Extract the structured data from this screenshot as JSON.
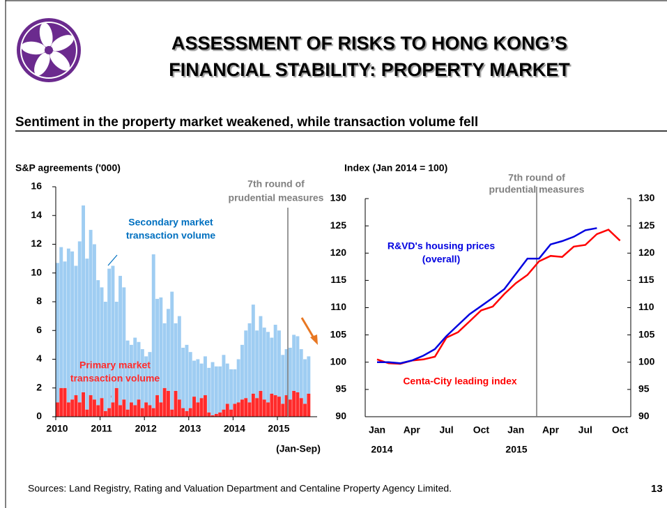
{
  "header": {
    "title": [
      "ASSESSMENT OF RISKS TO HONG KONG’S",
      "FINANCIAL  STABILITY: PROPERTY MARKET"
    ]
  },
  "subtitle": "Sentiment in the property market weakened, while transaction volume fell",
  "sources": "Sources: Land Registry, Rating and Valuation Department and Centaline Property Agency Limited.",
  "page_number": "13",
  "chart_data": [
    {
      "type": "bar",
      "stacked": true,
      "y_label": "S&P agreements ('000)",
      "categories": [
        "2010",
        null,
        null,
        null,
        null,
        null,
        null,
        null,
        null,
        null,
        null,
        null,
        "2011",
        null,
        null,
        null,
        null,
        null,
        null,
        null,
        null,
        null,
        null,
        null,
        "2012",
        null,
        null,
        null,
        null,
        null,
        null,
        null,
        null,
        null,
        null,
        null,
        "2013",
        null,
        null,
        null,
        null,
        null,
        null,
        null,
        null,
        null,
        null,
        null,
        "2014",
        null,
        null,
        null,
        null,
        null,
        null,
        null,
        null,
        null,
        null,
        null,
        "2015",
        null,
        null,
        null,
        null,
        null,
        null,
        null,
        null
      ],
      "series": [
        {
          "color": "#ff2b2b",
          "values": [
            1.0,
            2.0,
            2.0,
            1.0,
            1.2,
            1.5,
            1.0,
            1.7,
            0.5,
            1.5,
            1.2,
            0.8,
            1.3,
            0.4,
            0.6,
            1.0,
            2.0,
            0.8,
            1.2,
            0.5,
            1.0,
            0.8,
            1.2,
            0.6,
            1.0,
            0.8,
            0.6,
            1.5,
            1.0,
            2.0,
            1.8,
            0.5,
            1.8,
            1.2,
            0.6,
            0.4,
            0.6,
            1.4,
            1.0,
            1.3,
            1.5,
            0.3,
            0.1,
            0.2,
            0.3,
            0.5,
            0.9,
            0.5,
            0.9,
            1.0,
            1.2,
            1.3,
            1.0,
            1.6,
            1.3,
            1.8,
            1.2,
            1.0,
            1.6,
            1.5,
            1.4,
            0.9,
            1.5,
            1.2,
            1.8,
            1.7,
            1.3,
            0.9,
            1.6
          ]
        },
        {
          "color": "#9fcdf2",
          "values": [
            9.7,
            9.8,
            8.8,
            10.7,
            10.3,
            9.0,
            11.2,
            13.0,
            10.5,
            11.5,
            10.8,
            8.7,
            7.7,
            7.6,
            9.7,
            9.5,
            6.0,
            9.0,
            7.8,
            4.8,
            4.0,
            4.7,
            4.0,
            4.1,
            3.2,
            3.7,
            10.7,
            6.7,
            7.3,
            4.5,
            5.7,
            8.2,
            4.7,
            5.8,
            4.2,
            4.6,
            3.9,
            2.5,
            3.0,
            2.4,
            2.7,
            3.1,
            3.7,
            3.3,
            3.2,
            3.8,
            2.8,
            2.8,
            2.4,
            3.0,
            3.8,
            4.7,
            5.5,
            6.2,
            4.7,
            5.2,
            5.0,
            4.9,
            3.9,
            4.9,
            4.6,
            3.4,
            3.2,
            3.6,
            3.9,
            3.9,
            3.4,
            3.1,
            2.6
          ]
        }
      ],
      "ylim": [
        0,
        16
      ],
      "yticks": [
        0,
        2,
        4,
        6,
        8,
        10,
        12,
        14,
        16
      ],
      "annotations": [
        "7th round of",
        "prudential measures",
        "Secondary market",
        "transaction volume",
        "Primary market",
        "transaction volume",
        "(Jan-Sep)"
      ]
    },
    {
      "type": "line",
      "y_label": "Index (Jan 2014 = 100)",
      "categories": [
        "Jan",
        null,
        null,
        "Apr",
        null,
        null,
        "Jul",
        null,
        null,
        "Oct",
        null,
        null,
        "Jan",
        null,
        null,
        "Apr",
        null,
        null,
        "Jul",
        null,
        null,
        "Oct"
      ],
      "x_year_labels": [
        "2014",
        "2015"
      ],
      "series": [
        {
          "color": "#0000e0",
          "values": [
            100,
            100,
            99.8,
            100.3,
            101.2,
            102.4,
            104.8,
            106.8,
            108.8,
            110.3,
            111.8,
            113.4,
            116.2,
            119,
            119,
            121.6,
            122.2,
            123,
            124.2,
            124.6,
            null,
            null
          ]
        },
        {
          "color": "#ff0000",
          "values": [
            100.5,
            99.8,
            99.7,
            100.3,
            100.5,
            101,
            104.5,
            105.5,
            107.5,
            109.5,
            110.2,
            112.5,
            114.5,
            116,
            118.5,
            119.5,
            119.3,
            121.2,
            121.5,
            123.5,
            124.3,
            122.3
          ]
        }
      ],
      "ylim": [
        90,
        130
      ],
      "yticks": [
        90,
        95,
        100,
        105,
        110,
        115,
        120,
        125,
        130
      ],
      "y2lim": [
        90,
        130
      ],
      "y2ticks": [
        90,
        95,
        100,
        105,
        110,
        115,
        120,
        125,
        130
      ],
      "annotations": [
        "7th round of",
        "prudential measures",
        "R&VD's housing prices",
        "(overall)",
        "Centa-City leading index"
      ]
    }
  ]
}
